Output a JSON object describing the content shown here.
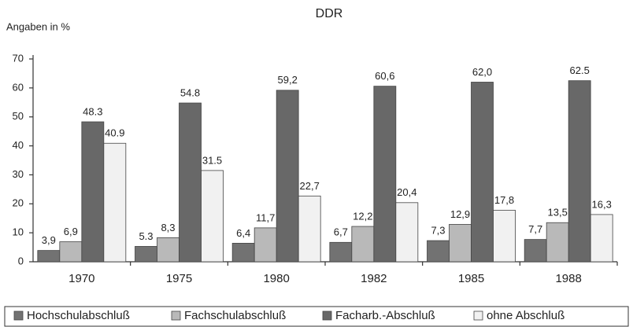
{
  "chart_data": {
    "type": "bar",
    "title": "DDR",
    "y_label": "Angaben in %",
    "categories": [
      "1970",
      "1975",
      "1980",
      "1982",
      "1985",
      "1988"
    ],
    "series": [
      {
        "name": "Hochschulabschluß",
        "color": "#727272",
        "values": [
          3.9,
          5.3,
          6.4,
          6.7,
          7.3,
          7.7
        ],
        "value_labels": [
          "3,9",
          "5.3",
          "6,4",
          "6,7",
          "7,3",
          "7,7"
        ]
      },
      {
        "name": "Fachschulabschluß",
        "color": "#b9b9b9",
        "values": [
          6.9,
          8.3,
          11.7,
          12.2,
          12.9,
          13.5
        ],
        "value_labels": [
          "6,9",
          "8,3",
          "11,7",
          "12,2",
          "12,9",
          "13,5"
        ]
      },
      {
        "name": "Facharb.-Abschluß",
        "color": "#686868",
        "values": [
          48.3,
          54.8,
          59.2,
          60.6,
          62.0,
          62.5
        ],
        "value_labels": [
          "48.3",
          "54.8",
          "59,2",
          "60,6",
          "62,0",
          "62.5"
        ]
      },
      {
        "name": "ohne Abschluß",
        "color": "#f1f1f1",
        "values": [
          40.9,
          31.5,
          22.7,
          20.4,
          17.8,
          16.3
        ],
        "value_labels": [
          "40.9",
          "31.5",
          "22,7",
          "20,4",
          "17,8",
          "16,3"
        ]
      }
    ],
    "ylim": [
      0,
      70
    ],
    "yticks": [
      0,
      10,
      20,
      30,
      40,
      50,
      60,
      70
    ]
  }
}
